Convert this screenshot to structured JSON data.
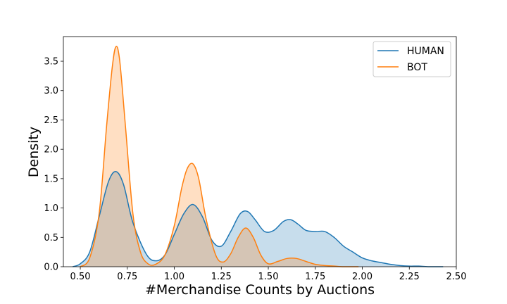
{
  "chart_data": {
    "type": "area",
    "title": "",
    "xlabel": "#Merchandise Counts by Auctions",
    "ylabel": "Density",
    "xlim": [
      0.41,
      2.5
    ],
    "ylim": [
      0,
      3.92
    ],
    "xticks": [
      "0.50",
      "0.75",
      "1.00",
      "1.25",
      "1.50",
      "1.75",
      "2.00",
      "2.25",
      "2.50"
    ],
    "yticks": [
      "0.0",
      "0.5",
      "1.0",
      "1.5",
      "2.0",
      "2.5",
      "3.0",
      "3.5"
    ],
    "grid": false,
    "legend_position": "top-right",
    "series": [
      {
        "name": "HUMAN",
        "color": "#1f77b4",
        "fill": "#aecde8",
        "x": [
          0.46,
          0.5,
          0.55,
          0.6,
          0.65,
          0.69,
          0.73,
          0.78,
          0.85,
          0.9,
          0.95,
          1.0,
          1.05,
          1.1,
          1.15,
          1.2,
          1.25,
          1.3,
          1.35,
          1.39,
          1.43,
          1.48,
          1.53,
          1.58,
          1.62,
          1.66,
          1.7,
          1.75,
          1.8,
          1.85,
          1.9,
          1.95,
          2.0,
          2.05,
          2.1,
          2.15,
          2.2,
          2.25,
          2.3,
          2.35,
          2.43
        ],
        "y": [
          0.0,
          0.05,
          0.25,
          0.85,
          1.45,
          1.62,
          1.4,
          0.75,
          0.22,
          0.1,
          0.2,
          0.55,
          0.9,
          1.06,
          0.85,
          0.45,
          0.35,
          0.6,
          0.9,
          0.94,
          0.8,
          0.6,
          0.62,
          0.77,
          0.8,
          0.72,
          0.62,
          0.6,
          0.6,
          0.5,
          0.35,
          0.25,
          0.15,
          0.1,
          0.07,
          0.04,
          0.02,
          0.01,
          0.01,
          0.0,
          0.0
        ]
      },
      {
        "name": "BOT",
        "color": "#ff7f0e",
        "fill": "#ffcba0",
        "x": [
          0.5,
          0.55,
          0.6,
          0.64,
          0.67,
          0.69,
          0.71,
          0.74,
          0.78,
          0.82,
          0.86,
          0.9,
          0.95,
          1.0,
          1.04,
          1.07,
          1.1,
          1.13,
          1.17,
          1.22,
          1.26,
          1.3,
          1.34,
          1.38,
          1.42,
          1.46,
          1.5,
          1.55,
          1.6,
          1.65,
          1.7,
          1.75,
          1.8,
          1.85,
          1.9,
          1.95,
          1.98
        ],
        "y": [
          0.0,
          0.15,
          0.9,
          2.4,
          3.4,
          3.75,
          3.5,
          2.4,
          0.9,
          0.25,
          0.05,
          0.04,
          0.2,
          0.7,
          1.35,
          1.68,
          1.75,
          1.5,
          0.8,
          0.2,
          0.08,
          0.22,
          0.5,
          0.66,
          0.5,
          0.2,
          0.05,
          0.09,
          0.14,
          0.14,
          0.09,
          0.04,
          0.02,
          0.01,
          0.0,
          0.0,
          0.0
        ]
      }
    ]
  }
}
